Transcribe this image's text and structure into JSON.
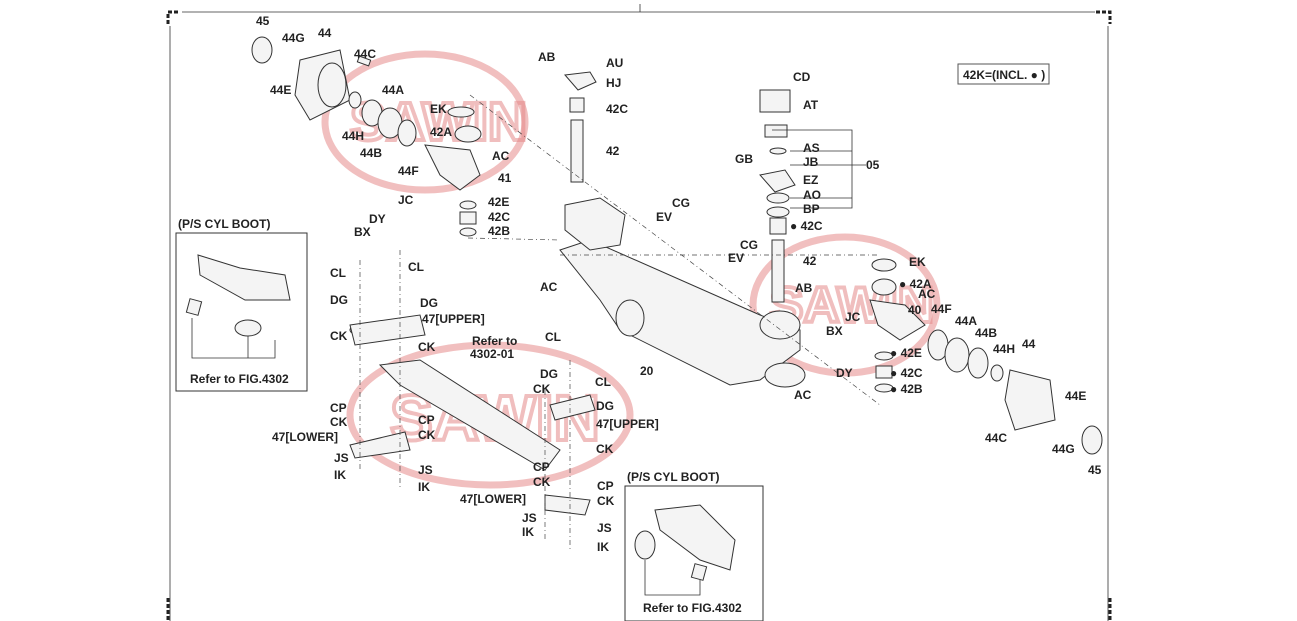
{
  "diagram": {
    "legend_box": "42K=(INCL. ● )",
    "inset_left": {
      "title": "(P/S CYL BOOT)",
      "reference": "Refer to FIG.4302"
    },
    "inset_right": {
      "title": "(P/S CYL BOOT)",
      "reference": "Refer to FIG.4302"
    },
    "refer_note": [
      "Refer to",
      "4302-01"
    ],
    "watermark": "SAWIN GROUP",
    "labels": [
      "45",
      "44G",
      "44",
      "44C",
      "44E",
      "44A",
      "EK",
      "42A",
      "44H",
      "44B",
      "AC",
      "44F",
      "41",
      "JC",
      "42E",
      "DY",
      "42C",
      "BX",
      "42B",
      "AB",
      "AU",
      "HJ",
      "42C",
      "42",
      "AC",
      "CL",
      "CL",
      "DG",
      "DG",
      "47[UPPER]",
      "CK",
      "CK",
      "CL",
      "CL",
      "DG",
      "CK",
      "DG",
      "47[UPPER]",
      "CK",
      "CP",
      "CK",
      "CP",
      "47[LOWER]",
      "CK",
      "CP",
      "CK",
      "JS",
      "JS",
      "IK",
      "IK",
      "47[LOWER]",
      "CP",
      "CK",
      "JS",
      "IK",
      "JS",
      "IK",
      "20",
      "CD",
      "AT",
      "AS",
      "GB",
      "JB",
      "05",
      "EZ",
      "AO",
      "BP",
      "● 42C",
      "CG",
      "EV",
      "CG",
      "EV",
      "42",
      "EK",
      "AB",
      "● 42A",
      "AC",
      "40",
      "44F",
      "44A",
      "JC",
      "BX",
      "44B",
      "● 42E",
      "44H",
      "44",
      "DY",
      "● 42C",
      "● 42B",
      "AC",
      "44E",
      "44C",
      "44G",
      "45"
    ]
  }
}
